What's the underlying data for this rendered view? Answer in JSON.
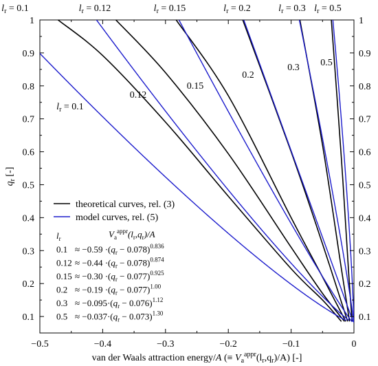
{
  "chart_data": {
    "type": "line",
    "xlabel_parts": {
      "main": "van der Waals attraction energy/",
      "A": "A",
      "paren_open": " (≡ ",
      "V": "V",
      "sub_a": "a",
      "sup_appr": "appr",
      "args": "(l",
      "sub_r1": "r",
      "comma": ",q",
      "sub_r2": "r",
      "close": ")/A) [-]"
    },
    "ylabel_parts": {
      "q": "q",
      "sub": "r",
      "unit": " [-]"
    },
    "xlim": [
      -0.5,
      0
    ],
    "ylim": [
      0.05,
      1.0
    ],
    "x_ticks": [
      "-0.5",
      "-0.4",
      "-0.3",
      "-0.2",
      "-0.1",
      "0"
    ],
    "x_tick_values": [
      -0.5,
      -0.4,
      -0.3,
      -0.2,
      -0.1,
      0
    ],
    "y_ticks": [
      "0.1",
      "0.2",
      "0.3",
      "0.4",
      "0.5",
      "0.6",
      "0.7",
      "0.8",
      "0.9",
      "1"
    ],
    "y_tick_values": [
      0.1,
      0.2,
      0.3,
      0.4,
      0.5,
      0.6,
      0.7,
      0.8,
      0.9,
      1.0
    ],
    "colors": {
      "theoretical": "#000000",
      "model": "#1a1acc"
    },
    "legend": [
      {
        "label": "theoretical curves, rel. (3)",
        "color": "#000000"
      },
      {
        "label": "model curves, rel. (5)",
        "color": "#1a1acc"
      }
    ],
    "top_labels": [
      "0.1",
      "0.12",
      "0.15",
      "0.2",
      "0.3",
      "0.5"
    ],
    "top_label_prefix": "l",
    "top_label_sub": "r",
    "curve_labels": [
      "0.1",
      "0.12",
      "0.15",
      "0.2",
      "0.3",
      "0.5"
    ],
    "model_params": [
      {
        "lr": 0.1,
        "a": 0.59,
        "q0": 0.078,
        "p": 0.836
      },
      {
        "lr": 0.12,
        "a": 0.44,
        "q0": 0.078,
        "p": 0.874
      },
      {
        "lr": 0.15,
        "a": 0.3,
        "q0": 0.077,
        "p": 0.925
      },
      {
        "lr": 0.2,
        "a": 0.19,
        "q0": 0.077,
        "p": 1.0
      },
      {
        "lr": 0.3,
        "a": 0.095,
        "q0": 0.076,
        "p": 1.12
      },
      {
        "lr": 0.5,
        "a": 0.037,
        "q0": 0.073,
        "p": 1.3
      }
    ],
    "series": [
      {
        "lr": 0.1,
        "type": "theoretical",
        "points": [
          [
            -0.471,
            1.0
          ],
          [
            -0.4,
            0.892
          ],
          [
            -0.3,
            0.69
          ],
          [
            -0.2,
            0.465
          ],
          [
            -0.1,
            0.245
          ],
          [
            -0.05,
            0.15
          ],
          [
            -0.02,
            0.085
          ]
        ]
      },
      {
        "lr": 0.12,
        "type": "theoretical",
        "points": [
          [
            -0.379,
            1.0
          ],
          [
            -0.3,
            0.84
          ],
          [
            -0.2,
            0.594
          ],
          [
            -0.1,
            0.31
          ],
          [
            -0.05,
            0.17
          ],
          [
            -0.015,
            0.085
          ]
        ]
      },
      {
        "lr": 0.15,
        "type": "theoretical",
        "points": [
          [
            -0.283,
            1.0
          ],
          [
            -0.2,
            0.77
          ],
          [
            -0.1,
            0.4
          ],
          [
            -0.05,
            0.22
          ],
          [
            -0.013,
            0.085
          ]
        ]
      },
      {
        "lr": 0.2,
        "type": "theoretical",
        "points": [
          [
            -0.177,
            1.0
          ],
          [
            -0.1,
            0.6
          ],
          [
            -0.05,
            0.32
          ],
          [
            -0.01,
            0.085
          ]
        ]
      },
      {
        "lr": 0.3,
        "type": "theoretical",
        "points": [
          [
            -0.086,
            1.0
          ],
          [
            -0.05,
            0.62
          ],
          [
            -0.02,
            0.245
          ],
          [
            -0.007,
            0.085
          ]
        ]
      },
      {
        "lr": 0.5,
        "type": "theoretical",
        "points": [
          [
            -0.036,
            1.0
          ],
          [
            -0.02,
            0.58
          ],
          [
            -0.008,
            0.22
          ],
          [
            -0.003,
            0.085
          ]
        ]
      }
    ],
    "table_header": {
      "lr": "l",
      "lr_sub": "r",
      "v": "V",
      "v_sub": "a",
      "v_sup": "appr",
      "v_args": "(l",
      "v_args_sub1": "r",
      "v_args_mid": ",q",
      "v_args_sub2": "r",
      "v_args_end": ")/A"
    },
    "table_rows": [
      {
        "lr": "0.1",
        "coef": "≈ −0.59 ",
        "q0": "0.078",
        "exp": "0.836"
      },
      {
        "lr": "0.12",
        "coef": "≈ −0.44 ",
        "q0": "0.078",
        "exp": "0.874"
      },
      {
        "lr": "0.15",
        "coef": "≈ −0.30 ",
        "q0": "0.077",
        "exp": "0.925"
      },
      {
        "lr": "0.2",
        "coef": "≈ −0.19 ",
        "q0": "0.077",
        "exp": "1.00"
      },
      {
        "lr": "0.3",
        "coef": "≈ −0.095",
        "q0": "0.076",
        "exp": "1.12"
      },
      {
        "lr": "0.5",
        "coef": "≈ −0.037",
        "q0": "0.073",
        "exp": "1.30"
      }
    ]
  }
}
